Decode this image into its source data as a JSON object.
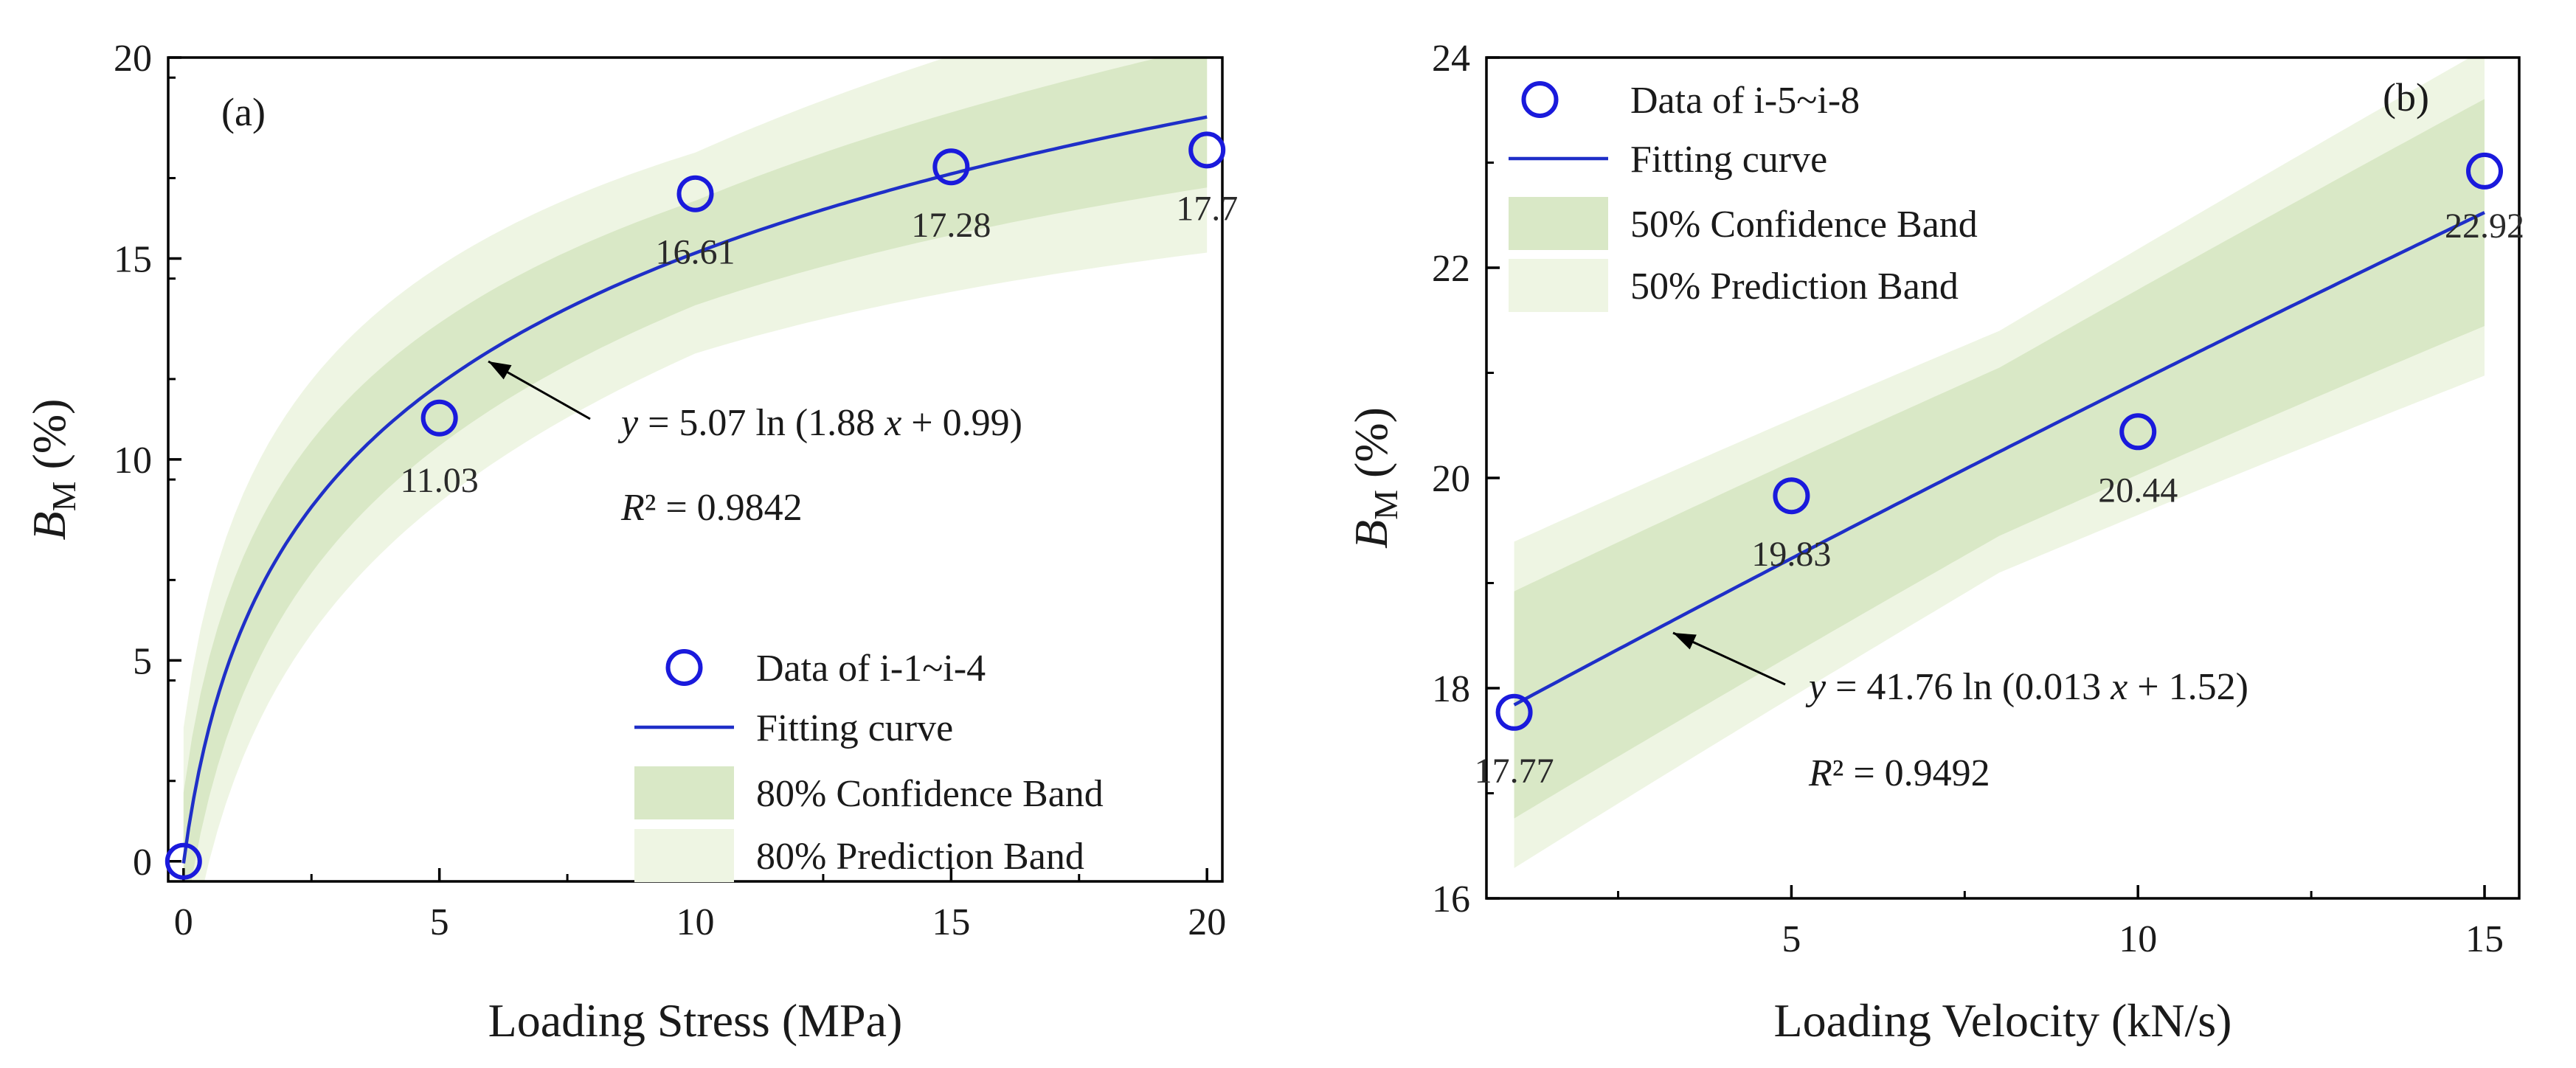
{
  "chart_data": [
    {
      "panel_label": "(a)",
      "type": "scatter",
      "xlabel": "Loading Stress (MPa)",
      "ylabel_main": "B",
      "ylabel_sub": "M",
      "ylabel_unit": "(%)",
      "xlim": [
        -0.3,
        20.3
      ],
      "ylim": [
        -0.5,
        20
      ],
      "xticks": [
        0,
        5,
        10,
        15,
        20
      ],
      "yticks": [
        0,
        5,
        10,
        15,
        20
      ],
      "points": [
        {
          "x": 0,
          "y": 0,
          "label": ""
        },
        {
          "x": 5,
          "y": 11.03,
          "label": "11.03"
        },
        {
          "x": 10,
          "y": 16.61,
          "label": "16.61"
        },
        {
          "x": 15,
          "y": 17.28,
          "label": "17.28"
        },
        {
          "x": 20,
          "y": 17.7,
          "label": "17.7"
        }
      ],
      "fit": {
        "a": 5.07,
        "b": 1.88,
        "c": 0.99,
        "x_from": 0,
        "x_to": 20
      },
      "conf_band_halfwidth": 1.3,
      "pred_band_halfwidth": 2.5,
      "equation": {
        "prefix": "y",
        "rest": " = 5.07 ln (1.88 ",
        "var": "x",
        "suffix": " + 0.99)"
      },
      "r2": {
        "prefix": "R",
        "rest": "² = 0.9842"
      },
      "legend": {
        "data": "Data of  i-1~i-4",
        "fit": "Fitting curve",
        "conf": "80% Confidence Band",
        "pred": "80% Prediction Band"
      }
    },
    {
      "panel_label": "(b)",
      "type": "scatter",
      "xlabel": "Loading Velocity (kN/s)",
      "ylabel_main": "B",
      "ylabel_sub": "M",
      "ylabel_unit": "(%)",
      "xlim": [
        0.6,
        15.5
      ],
      "ylim": [
        16,
        24
      ],
      "xticks": [
        5,
        10,
        15
      ],
      "yticks": [
        16,
        18,
        20,
        22,
        24
      ],
      "points": [
        {
          "x": 1,
          "y": 17.77,
          "label": "17.77"
        },
        {
          "x": 5,
          "y": 19.83,
          "label": "19.83"
        },
        {
          "x": 10,
          "y": 20.44,
          "label": "20.44"
        },
        {
          "x": 15,
          "y": 22.92,
          "label": "22.92"
        }
      ],
      "fit": {
        "a": 41.76,
        "b": 0.013,
        "c": 1.52,
        "x_from": 1,
        "x_to": 15
      },
      "conf_band_halfwidth": 0.8,
      "pred_band_halfwidth": 1.15,
      "equation": {
        "prefix": "y",
        "rest": " = 41.76 ln (0.013 ",
        "var": "x",
        "suffix": " + 1.52)"
      },
      "r2": {
        "prefix": "R",
        "rest": "² = 0.9492"
      },
      "legend": {
        "data": "Data of  i-5~i-8",
        "fit": "Fitting curve",
        "conf": "50% Confidence Band",
        "pred": "50% Prediction Band"
      }
    }
  ],
  "colors": {
    "marker": "#1a1adc",
    "fit_line": "#1f2fc8",
    "conf_band": "#d9e8c6",
    "pred_band": "#eef5e3",
    "axis": "#000000"
  }
}
